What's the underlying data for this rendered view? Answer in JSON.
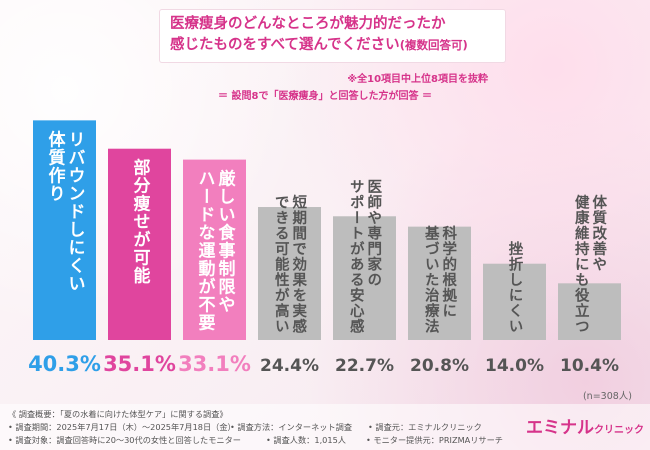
{
  "title_line1": "医療痩身のどんなところが魅力的だったか",
  "title_line2": "感じたものをすべて選んでください",
  "title_line2_suffix": "(複数回答可)",
  "note": "※全10項目中上位8項目を抜粋",
  "subtitle": "＝ 設問8で「医療痩身」と回答した方が回答 ＝",
  "n_label": "(n=308人)",
  "colors": {
    "bar_first": "#2f9fe8",
    "bar_second": "#e0459e",
    "bar_third": "#f27fbe",
    "bar_other": "#bdbdbd",
    "accent": "#d6338a"
  },
  "chart_data": {
    "type": "bar",
    "unit": "%",
    "categories": [
      "リバウンドしにくい体質作り",
      "部分痩せが可能",
      "厳しい食事制限やハードな運動が不要",
      "短期間で効果を実感できる可能性が高い",
      "医師や専門家のサポートがある安心感",
      "科学的根拠に基づいた治療法",
      "挫折しにくい",
      "体質改善や健康維持にも役立つ"
    ],
    "values": [
      40.3,
      35.1,
      33.1,
      24.4,
      22.7,
      20.8,
      14.0,
      10.4
    ],
    "value_labels": [
      "40.3%",
      "35.1%",
      "33.1%",
      "24.4%",
      "22.7%",
      "20.8%",
      "14.0%",
      "10.4%"
    ],
    "label_columns": [
      [
        "リバウンドしにくい",
        "体質作り"
      ],
      [
        "部分痩せが可能"
      ],
      [
        "厳しい食事制限や",
        "ハードな運動が不要"
      ],
      [
        "短期間で効果を実感",
        "できる可能性が高い"
      ],
      [
        "医師や専門家の",
        "サポートがある安心感"
      ],
      [
        "科学的根拠に",
        "基づいた治療法"
      ],
      [
        "挫折しにくい"
      ],
      [
        "体質改善や",
        "健康維持にも役立つ"
      ]
    ]
  },
  "footer": {
    "line1": "《 調査概要：「夏の水着に向けた体型ケア」に関する調査》",
    "period": "• 調査期間：2025年7月17日（木）〜2025年7月18日（金）",
    "method": "• 調査方法：インターネット調査",
    "org": "• 調査元：エミナルクリニック",
    "target": "• 調査対象：調査回答時に20〜30代の女性と回答したモニター",
    "count": "• 調査人数：1,015人",
    "provider": "• モニター提供元：PRIZMAリサーチ"
  },
  "brand": {
    "name": "エミナル",
    "suffix": "クリニック"
  }
}
